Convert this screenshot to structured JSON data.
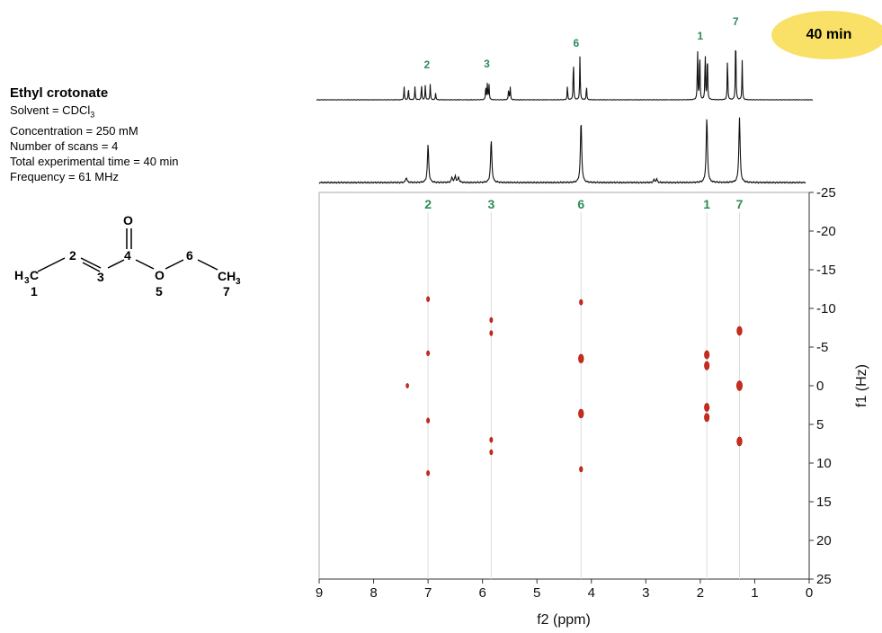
{
  "sample": {
    "title": "Ethyl crotonate",
    "solvent_prefix": "Solvent = CDCl",
    "solvent_sub": "3",
    "concentration": "Concentration = 250 mM",
    "scans": "Number of scans = 4",
    "time": "Total experimental time = 40 min",
    "frequency": "Frequency = 61 MHz"
  },
  "badge": {
    "label": "40 min",
    "color": "#f9e167"
  },
  "molecule": {
    "atoms": {
      "O_carbonyl": "O",
      "O_ester": "O",
      "H_left": "H",
      "C_left": "C",
      "C_right": "CH",
      "sub3": "3"
    },
    "numbers": [
      "1",
      "2",
      "3",
      "4",
      "5",
      "6",
      "7"
    ]
  },
  "chart_data": {
    "type": "scatter",
    "subtype": "2D J-resolved NMR spectrum with 1D projections",
    "xlabel": "f2 (ppm)",
    "ylabel": "f1 (Hz)",
    "xlim": [
      9,
      0
    ],
    "ylim": [
      -25,
      25
    ],
    "x_ticks": [
      "9",
      "8",
      "7",
      "6",
      "5",
      "4",
      "3",
      "2",
      "1",
      "0"
    ],
    "y_ticks": [
      "-25",
      "-20",
      "-15",
      "-10",
      "-5",
      "0",
      "5",
      "10",
      "15",
      "20",
      "25"
    ],
    "peak_labels": [
      {
        "label": "2",
        "ppm": 7.0
      },
      {
        "label": "3",
        "ppm": 5.84
      },
      {
        "label": "6",
        "ppm": 4.19
      },
      {
        "label": "1",
        "ppm": 1.88
      },
      {
        "label": "7",
        "ppm": 1.28
      }
    ],
    "top_spectrum_labels": [
      {
        "label": "2",
        "ppm": 7.02
      },
      {
        "label": "3",
        "ppm": 5.92
      },
      {
        "label": "6",
        "ppm": 4.28
      },
      {
        "label": "1",
        "ppm": 2.0
      },
      {
        "label": "7",
        "ppm": 1.35
      }
    ],
    "peak_color": "#cc2a1b",
    "label_color": "#2e8b57",
    "points": [
      {
        "ppm": 7.0,
        "hz": -11.2,
        "r": 2.2
      },
      {
        "ppm": 7.0,
        "hz": -4.2,
        "r": 2.2
      },
      {
        "ppm": 7.0,
        "hz": 4.5,
        "r": 2.2
      },
      {
        "ppm": 7.0,
        "hz": 11.3,
        "r": 2.2
      },
      {
        "ppm": 7.38,
        "hz": 0.0,
        "r": 2.0
      },
      {
        "ppm": 5.84,
        "hz": -8.5,
        "r": 2.2
      },
      {
        "ppm": 5.84,
        "hz": -6.8,
        "r": 2.2
      },
      {
        "ppm": 5.84,
        "hz": 7.0,
        "r": 2.2
      },
      {
        "ppm": 5.84,
        "hz": 8.6,
        "r": 2.2
      },
      {
        "ppm": 4.19,
        "hz": -10.8,
        "r": 2.4
      },
      {
        "ppm": 4.19,
        "hz": -3.5,
        "r": 3.8
      },
      {
        "ppm": 4.19,
        "hz": 3.6,
        "r": 3.8
      },
      {
        "ppm": 4.19,
        "hz": 10.8,
        "r": 2.4
      },
      {
        "ppm": 1.88,
        "hz": -4.0,
        "r": 3.6
      },
      {
        "ppm": 1.88,
        "hz": -2.6,
        "r": 3.6
      },
      {
        "ppm": 1.88,
        "hz": 2.8,
        "r": 3.6
      },
      {
        "ppm": 1.88,
        "hz": 4.1,
        "r": 3.6
      },
      {
        "ppm": 1.28,
        "hz": -7.1,
        "r": 3.8
      },
      {
        "ppm": 1.28,
        "hz": 0.0,
        "r": 4.2
      },
      {
        "ppm": 1.28,
        "hz": 7.2,
        "r": 3.8
      }
    ],
    "top_projection": [
      {
        "ppm": 7.44,
        "h": 0.18
      },
      {
        "ppm": 7.36,
        "h": 0.17
      },
      {
        "ppm": 7.24,
        "h": 0.19
      },
      {
        "ppm": 7.12,
        "h": 0.22
      },
      {
        "ppm": 7.05,
        "h": 0.21
      },
      {
        "ppm": 6.96,
        "h": 0.22
      },
      {
        "ppm": 6.86,
        "h": 0.1
      },
      {
        "ppm": 5.94,
        "h": 0.2
      },
      {
        "ppm": 5.91,
        "h": 0.24
      },
      {
        "ppm": 5.88,
        "h": 0.22
      },
      {
        "ppm": 5.52,
        "h": 0.16
      },
      {
        "ppm": 5.49,
        "h": 0.18
      },
      {
        "ppm": 4.44,
        "h": 0.2
      },
      {
        "ppm": 4.33,
        "h": 0.6
      },
      {
        "ppm": 4.21,
        "h": 0.62
      },
      {
        "ppm": 4.09,
        "h": 0.2
      },
      {
        "ppm": 2.05,
        "h": 0.75
      },
      {
        "ppm": 2.01,
        "h": 0.73
      },
      {
        "ppm": 1.91,
        "h": 0.7
      },
      {
        "ppm": 1.87,
        "h": 0.7
      },
      {
        "ppm": 1.5,
        "h": 0.62
      },
      {
        "ppm": 1.35,
        "h": 1.0
      },
      {
        "ppm": 1.23,
        "h": 0.55
      }
    ],
    "bottom_projection": [
      {
        "ppm": 7.4,
        "h": 0.08
      },
      {
        "ppm": 7.0,
        "h": 0.58
      },
      {
        "ppm": 6.56,
        "h": 0.08
      },
      {
        "ppm": 6.5,
        "h": 0.1
      },
      {
        "ppm": 6.44,
        "h": 0.08
      },
      {
        "ppm": 5.84,
        "h": 0.65
      },
      {
        "ppm": 4.19,
        "h": 0.95
      },
      {
        "ppm": 2.85,
        "h": 0.04
      },
      {
        "ppm": 2.8,
        "h": 0.05
      },
      {
        "ppm": 1.88,
        "h": 1.0
      },
      {
        "ppm": 1.28,
        "h": 1.0
      }
    ]
  }
}
